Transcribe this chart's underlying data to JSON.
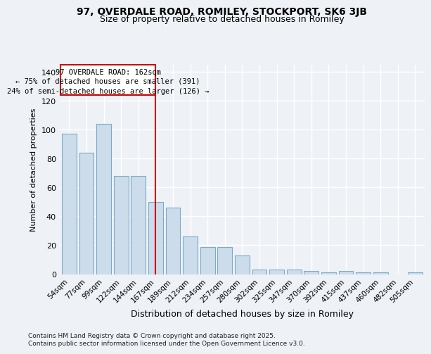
{
  "title1": "97, OVERDALE ROAD, ROMILEY, STOCKPORT, SK6 3JB",
  "title2": "Size of property relative to detached houses in Romiley",
  "xlabel": "Distribution of detached houses by size in Romiley",
  "ylabel": "Number of detached properties",
  "categories": [
    "54sqm",
    "77sqm",
    "99sqm",
    "122sqm",
    "144sqm",
    "167sqm",
    "189sqm",
    "212sqm",
    "234sqm",
    "257sqm",
    "280sqm",
    "302sqm",
    "325sqm",
    "347sqm",
    "370sqm",
    "392sqm",
    "415sqm",
    "437sqm",
    "460sqm",
    "482sqm",
    "505sqm"
  ],
  "values": [
    97,
    84,
    104,
    68,
    68,
    50,
    46,
    26,
    19,
    19,
    13,
    3,
    3,
    3,
    2,
    1,
    2,
    1,
    1,
    0,
    1
  ],
  "bar_color": "#ccdcea",
  "bar_edge_color": "#7aaac8",
  "property_line_label": "97 OVERDALE ROAD: 162sqm",
  "annotation_line1": "← 75% of detached houses are smaller (391)",
  "annotation_line2": "24% of semi-detached houses are larger (126) →",
  "vline_color": "#cc0000",
  "box_edge_color": "#cc0000",
  "ylim": [
    0,
    145
  ],
  "yticks": [
    0,
    20,
    40,
    60,
    80,
    100,
    120,
    140
  ],
  "footer_line1": "Contains HM Land Registry data © Crown copyright and database right 2025.",
  "footer_line2": "Contains public sector information licensed under the Open Government Licence v3.0.",
  "bg_color": "#eef2f7",
  "grid_color": "#ffffff"
}
